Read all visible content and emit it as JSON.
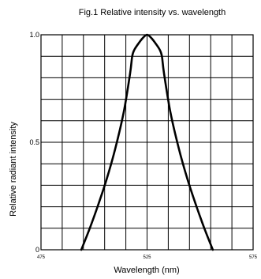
{
  "chart_data": {
    "type": "line",
    "title": "Fig.1 Relative intensity vs. wavelength",
    "xlabel": "Wavelength (nm)",
    "ylabel": "Relative radiant intensity",
    "xlim": [
      475,
      575
    ],
    "ylim": [
      0,
      1.0
    ],
    "x_ticks": [
      {
        "value": 475,
        "label": "475"
      },
      {
        "value": 525,
        "label": "525"
      },
      {
        "value": 575,
        "label": "575"
      }
    ],
    "y_ticks": [
      {
        "value": 0,
        "label": "0"
      },
      {
        "value": 0.5,
        "label": "0.5"
      },
      {
        "value": 1.0,
        "label": "1.0"
      }
    ],
    "grid": true,
    "grid_x_divisions": 10,
    "grid_y_divisions": 10,
    "series": [
      {
        "x": [
          494,
          498,
          502,
          506,
          510,
          514,
          517,
          518,
          519,
          521,
          523,
          525,
          527,
          529,
          531,
          532,
          533,
          536,
          540,
          544,
          548,
          552,
          556
        ],
        "y": [
          0,
          0.1,
          0.21,
          0.33,
          0.47,
          0.64,
          0.82,
          0.9,
          0.93,
          0.96,
          0.985,
          1.0,
          0.985,
          0.96,
          0.93,
          0.9,
          0.82,
          0.64,
          0.47,
          0.33,
          0.21,
          0.1,
          0
        ]
      }
    ]
  }
}
